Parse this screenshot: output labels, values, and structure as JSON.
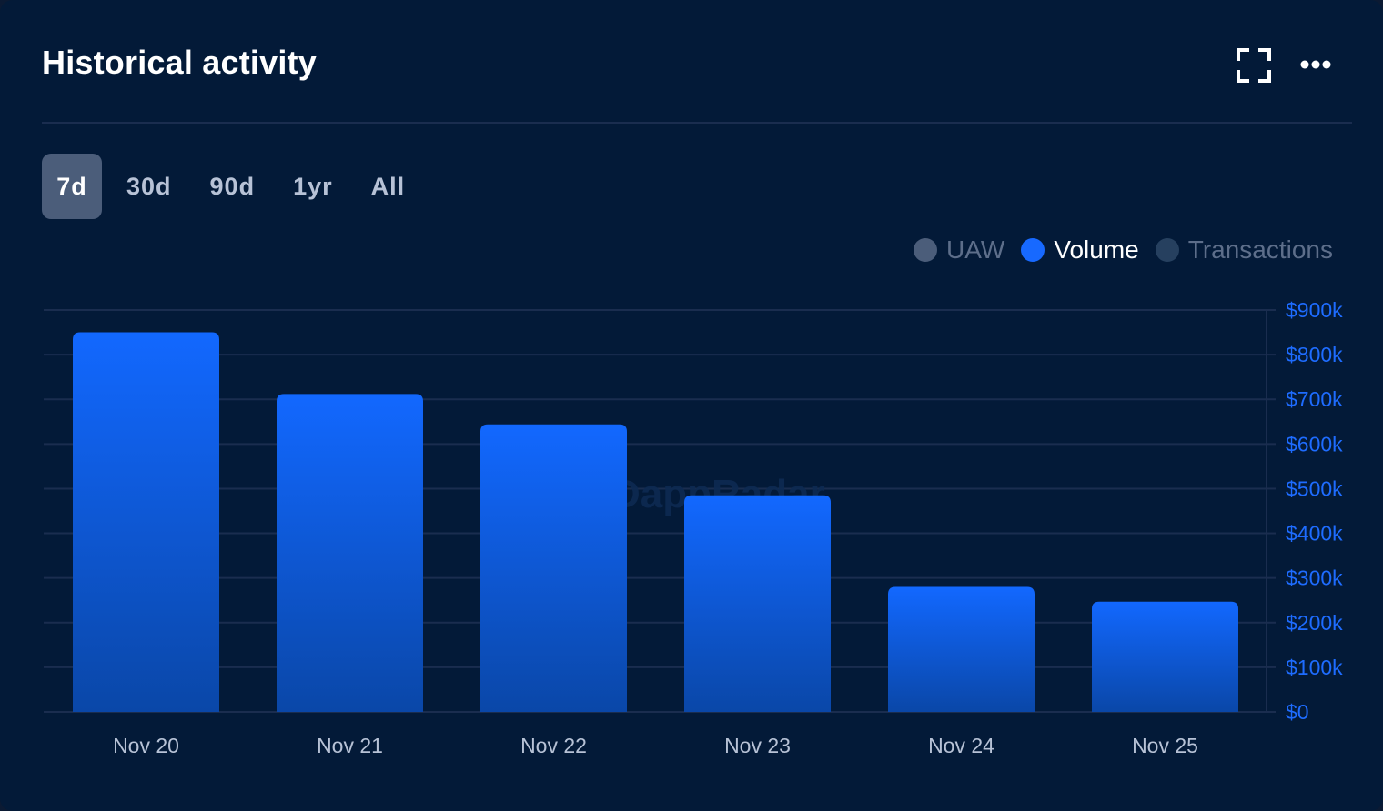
{
  "header": {
    "title": "Historical activity",
    "expand_icon": "expand-icon",
    "more_icon": "more-horizontal-icon"
  },
  "tabs": [
    {
      "label": "7d",
      "active": true
    },
    {
      "label": "30d",
      "active": false
    },
    {
      "label": "90d",
      "active": false
    },
    {
      "label": "1yr",
      "active": false
    },
    {
      "label": "All",
      "active": false
    }
  ],
  "legend": [
    {
      "label": "UAW",
      "color": "#4b5d7a",
      "text_color": "#5d6e8a",
      "active": false
    },
    {
      "label": "Volume",
      "color": "#1769ff",
      "text_color": "#ffffff",
      "active": true
    },
    {
      "label": "Transactions",
      "color": "#26405f",
      "text_color": "#5d6e8a",
      "active": false
    }
  ],
  "watermark": "DappRadar",
  "colors": {
    "accent": "#1e6cff",
    "bar_top": "#1268ff",
    "bar_bottom": "#0a47a8",
    "grid": "#1a2d4f",
    "card": "#031a38"
  },
  "chart_data": {
    "type": "bar",
    "categories": [
      "Nov 20",
      "Nov 21",
      "Nov 22",
      "Nov 23",
      "Nov 24",
      "Nov 25"
    ],
    "series": [
      {
        "name": "Volume",
        "values": [
          850000,
          712000,
          644000,
          485000,
          280000,
          247000
        ]
      }
    ],
    "ylim": [
      0,
      900000
    ],
    "y_ticks": [
      {
        "value": 0,
        "label": "$0"
      },
      {
        "value": 100000,
        "label": "$100k"
      },
      {
        "value": 200000,
        "label": "$200k"
      },
      {
        "value": 300000,
        "label": "$300k"
      },
      {
        "value": 400000,
        "label": "$400k"
      },
      {
        "value": 500000,
        "label": "$500k"
      },
      {
        "value": 600000,
        "label": "$600k"
      },
      {
        "value": 700000,
        "label": "$700k"
      },
      {
        "value": 800000,
        "label": "$800k"
      },
      {
        "value": 900000,
        "label": "$900k"
      }
    ],
    "y_axis_position": "right",
    "grid": true
  }
}
